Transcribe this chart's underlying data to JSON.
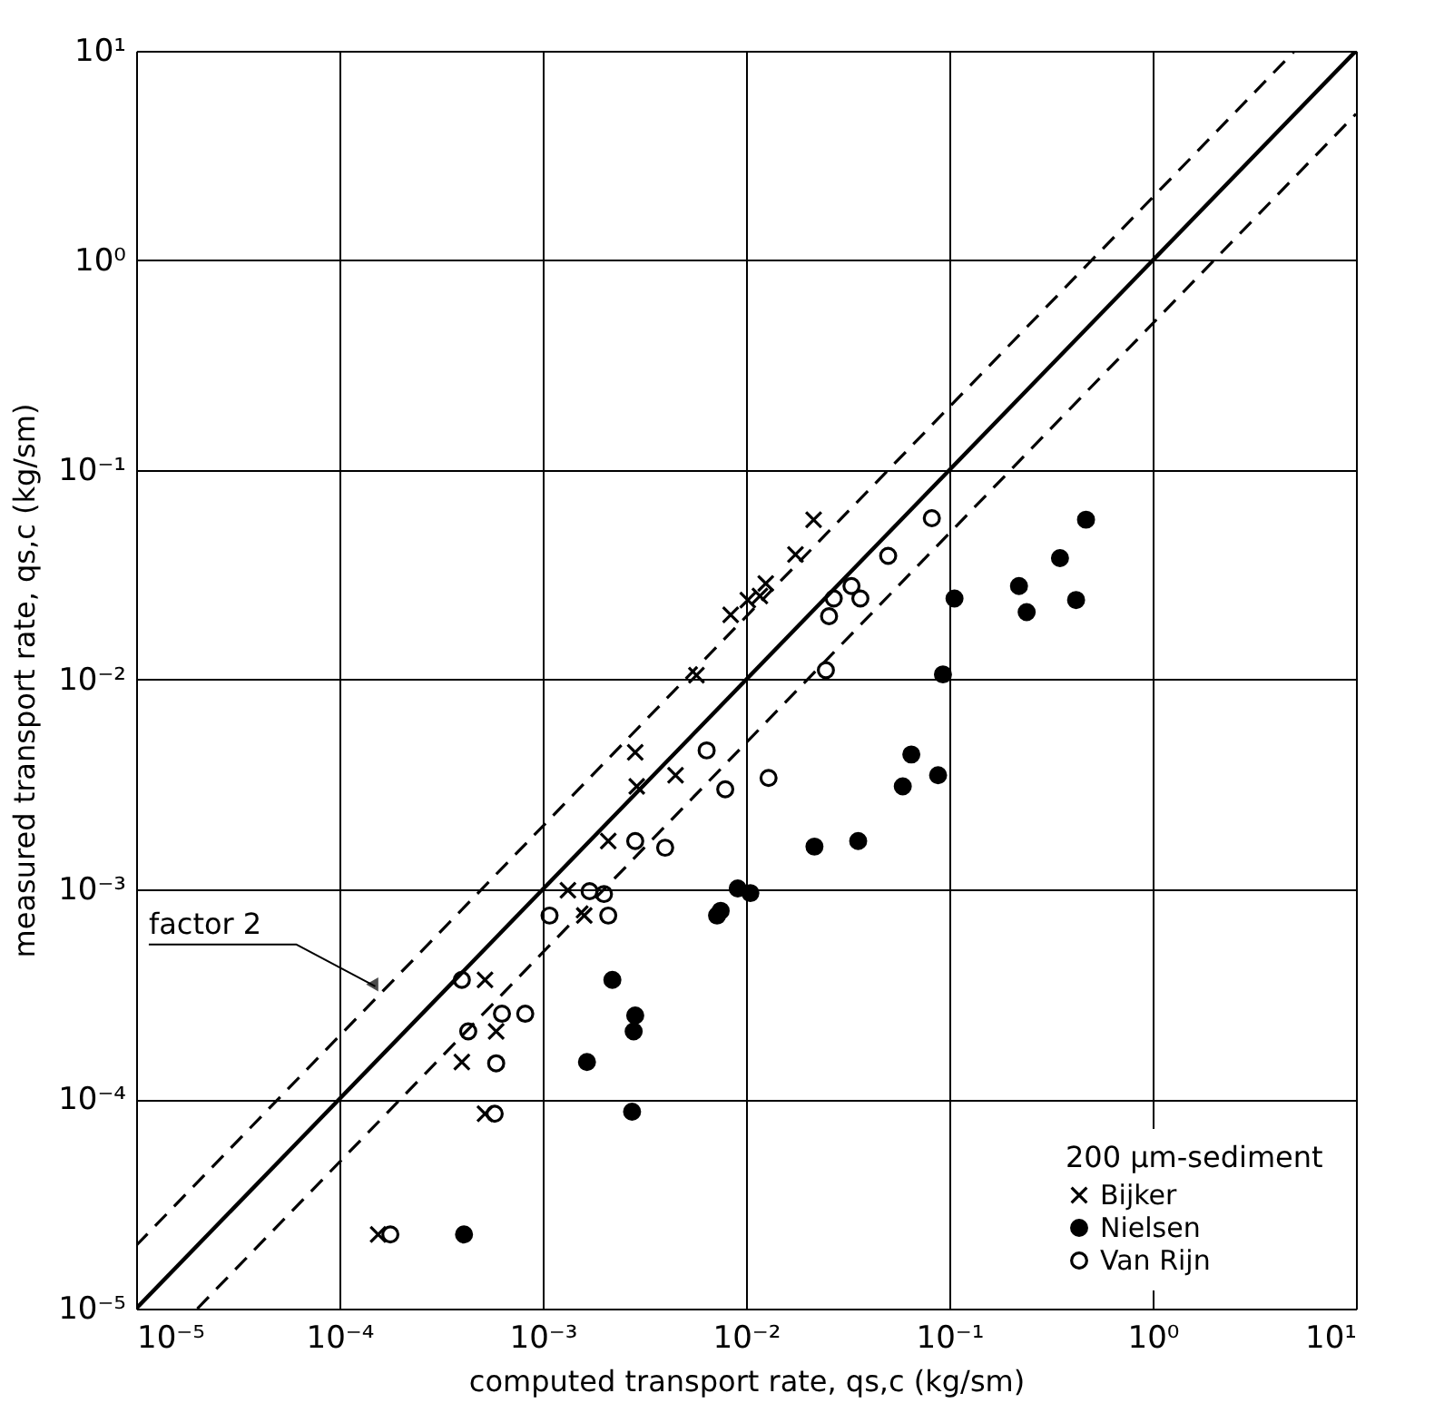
{
  "chart_data": {
    "type": "scatter",
    "xlabel": "computed transport rate, qs,c (kg/sm)",
    "ylabel": "measured transport rate, qs,c (kg/sm)",
    "legend_title": "200 μm-sediment",
    "legend": "bottom right",
    "grid": true,
    "log": "xy",
    "xlim": [
      1e-05,
      10
    ],
    "ylim": [
      1e-05,
      10
    ],
    "xticks": [
      {
        "value": 1e-05,
        "label": "10⁻⁵"
      },
      {
        "value": 0.0001,
        "label": "10⁻⁴"
      },
      {
        "value": 0.001,
        "label": "10⁻³"
      },
      {
        "value": 0.01,
        "label": "10⁻²"
      },
      {
        "value": 0.1,
        "label": "10⁻¹"
      },
      {
        "value": 1,
        "label": "10⁰"
      },
      {
        "value": 10,
        "label": "10¹"
      }
    ],
    "yticks": [
      {
        "value": 1e-05,
        "label": "10⁻⁵"
      },
      {
        "value": 0.0001,
        "label": "10⁻⁴"
      },
      {
        "value": 0.001,
        "label": "10⁻³"
      },
      {
        "value": 0.01,
        "label": "10⁻²"
      },
      {
        "value": 0.1,
        "label": "10⁻¹"
      },
      {
        "value": 1,
        "label": "10⁰"
      },
      {
        "value": 10,
        "label": "10¹"
      }
    ],
    "annotations": [
      {
        "text": "factor 2",
        "x": 0.00015,
        "y": 0.0003
      }
    ],
    "series": [
      {
        "name": "Bijker",
        "marker": "cross",
        "color": "#000000",
        "x": [
          0.0215,
          0.0175,
          0.0125,
          0.0102,
          0.0117,
          0.0084,
          0.0057,
          0.00285,
          0.0029,
          0.0045,
          0.0021,
          0.00133,
          0.0016,
          0.00052,
          0.00059,
          0.0004,
          0.00052,
          0.000155
        ],
        "values": [
          0.058,
          0.0396,
          0.0288,
          0.024,
          0.0251,
          0.0204,
          0.0105,
          0.0045,
          0.0031,
          0.0035,
          0.0017,
          0.00099,
          0.00075,
          0.00037,
          0.00021,
          0.00015,
          8.5e-05,
          2.26e-05
        ]
      },
      {
        "name": "Nielsen",
        "marker": "circle",
        "color": "#000000",
        "x": [
          0.47,
          0.35,
          0.22,
          0.24,
          0.42,
          0.106,
          0.093,
          0.065,
          0.088,
          0.059,
          0.0217,
          0.0356,
          0.0091,
          0.0105,
          0.0072,
          0.0075,
          0.0022,
          0.00285,
          0.0028,
          0.00165,
          0.00275,
          0.00041
        ],
        "values": [
          0.058,
          0.038,
          0.028,
          0.021,
          0.024,
          0.0244,
          0.0106,
          0.0044,
          0.0035,
          0.0031,
          0.0016,
          0.0017,
          0.00101,
          0.00096,
          0.00075,
          0.00079,
          0.00037,
          0.00025,
          0.00021,
          0.00015,
          8.7e-05,
          2.26e-05
        ]
      },
      {
        "name": "Van Rijn",
        "marker": "circle",
        "color": "#000000",
        "x": [
          0.082,
          0.05,
          0.033,
          0.0365,
          0.027,
          0.0256,
          0.0247,
          0.0129,
          0.0079,
          0.0064,
          0.004,
          0.00285,
          0.0017,
          0.002,
          0.00108,
          0.0021,
          0.0004,
          0.00043,
          0.00063,
          0.00082,
          0.00059,
          0.00058,
          0.000178
        ],
        "values": [
          0.059,
          0.039,
          0.028,
          0.0244,
          0.0244,
          0.0201,
          0.0111,
          0.0034,
          0.003,
          0.0046,
          0.00158,
          0.0017,
          0.00098,
          0.00095,
          0.00075,
          0.00075,
          0.00037,
          0.00021,
          0.000255,
          0.000255,
          0.000148,
          8.5e-05,
          2.26e-05
        ]
      },
      {
        "type": "line",
        "line_style": "solid",
        "color": "#000000",
        "x": [
          1e-05,
          10
        ],
        "values": [
          1e-05,
          10
        ]
      },
      {
        "type": "line",
        "line_style": "dashed",
        "color": "#000000",
        "x": [
          1e-05,
          5
        ],
        "values": [
          2e-05,
          10
        ]
      },
      {
        "type": "line",
        "line_style": "dashed",
        "color": "#000000",
        "x": [
          2e-05,
          10
        ],
        "values": [
          1e-05,
          5
        ]
      }
    ]
  }
}
